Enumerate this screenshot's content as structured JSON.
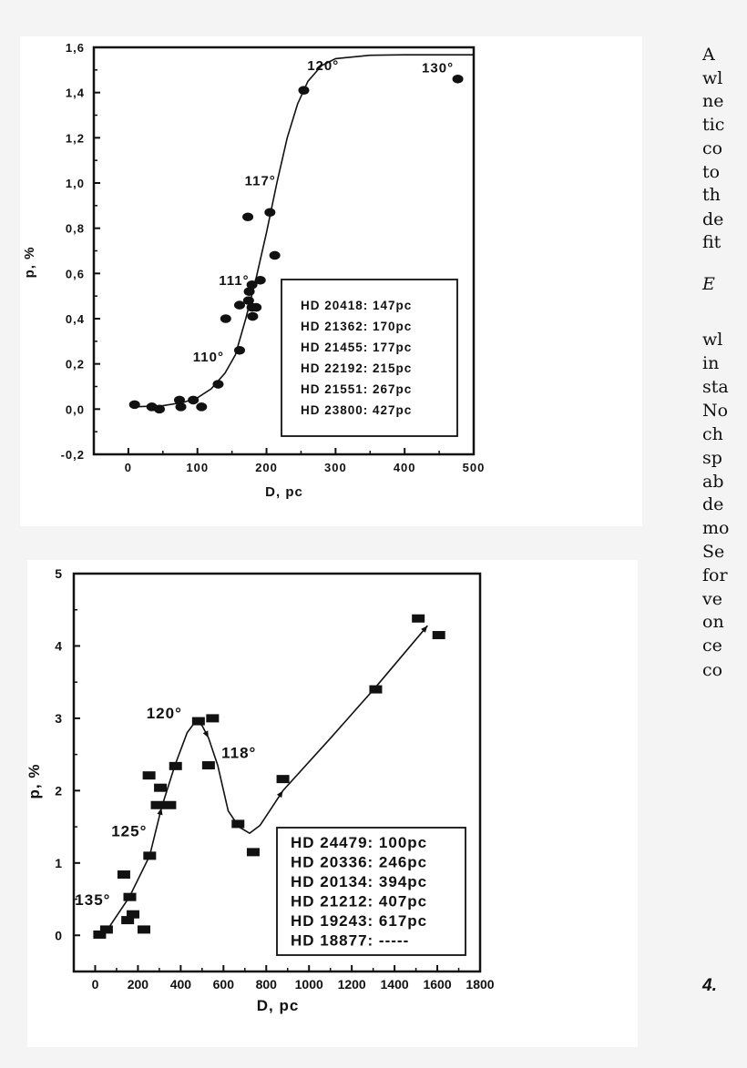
{
  "chart_data": [
    {
      "type": "scatter",
      "xlabel": "D, pc",
      "ylabel": "p, %",
      "xlim": [
        -50,
        500
      ],
      "ylim": [
        -0.2,
        1.6
      ],
      "xticks": [
        0,
        100,
        200,
        300,
        400,
        500
      ],
      "xtick_labels": [
        "0",
        "100",
        "200",
        "300",
        "400",
        "500"
      ],
      "yticks": [
        -0.2,
        0.0,
        0.2,
        0.4,
        0.6,
        0.8,
        1.0,
        1.2,
        1.4,
        1.6
      ],
      "ytick_labels": [
        "-0,2",
        "0,0",
        "0,2",
        "0,4",
        "0,6",
        "0,8",
        "1,0",
        "1,2",
        "1,4",
        "1,6"
      ],
      "marker": "circle",
      "grid": false,
      "legend_placement": "bottom-right",
      "legend": [
        "HD 20418: 147pc",
        "HD 21362: 170pc",
        "HD 21455: 177pc",
        "HD 22192: 215pc",
        "HD 21551: 267pc",
        "HD 23800: 427pc"
      ],
      "points": [
        [
          9,
          0.02
        ],
        [
          34,
          0.01
        ],
        [
          45,
          0.0
        ],
        [
          74,
          0.04
        ],
        [
          76,
          0.01
        ],
        [
          94,
          0.04
        ],
        [
          106,
          0.01
        ],
        [
          130,
          0.11
        ],
        [
          141,
          0.4
        ],
        [
          161,
          0.26
        ],
        [
          161,
          0.46
        ],
        [
          173,
          0.85
        ],
        [
          174,
          0.48
        ],
        [
          175,
          0.52
        ],
        [
          179,
          0.55
        ],
        [
          179,
          0.45
        ],
        [
          180,
          0.41
        ],
        [
          185,
          0.45
        ],
        [
          191,
          0.57
        ],
        [
          205,
          0.87
        ],
        [
          212,
          0.68
        ],
        [
          254,
          1.41
        ],
        [
          477,
          1.46
        ]
      ],
      "curve": [
        [
          5,
          0.01
        ],
        [
          50,
          0.015
        ],
        [
          80,
          0.03
        ],
        [
          100,
          0.05
        ],
        [
          120,
          0.09
        ],
        [
          140,
          0.16
        ],
        [
          155,
          0.24
        ],
        [
          170,
          0.4
        ],
        [
          185,
          0.58
        ],
        [
          200,
          0.78
        ],
        [
          215,
          1.0
        ],
        [
          230,
          1.2
        ],
        [
          245,
          1.35
        ],
        [
          260,
          1.45
        ],
        [
          280,
          1.52
        ],
        [
          300,
          1.55
        ],
        [
          350,
          1.565
        ],
        [
          400,
          1.567
        ],
        [
          500,
          1.567
        ]
      ],
      "annotations": [
        {
          "text": "120°",
          "x": 282,
          "y": 1.5
        },
        {
          "text": "130°",
          "x": 448,
          "y": 1.49
        },
        {
          "text": "117°",
          "x": 191,
          "y": 0.99
        },
        {
          "text": "111°",
          "x": 153,
          "y": 0.55
        },
        {
          "text": "110°",
          "x": 116,
          "y": 0.21
        }
      ]
    },
    {
      "type": "scatter",
      "xlabel": "D, pc",
      "ylabel": "p, %",
      "xlim": [
        -100,
        1800
      ],
      "ylim": [
        -0.5,
        5
      ],
      "xticks": [
        0,
        200,
        400,
        600,
        800,
        1000,
        1200,
        1400,
        1600,
        1800
      ],
      "xtick_labels": [
        "0",
        "200",
        "400",
        "600",
        "800",
        "1000",
        "1200",
        "1400",
        "1600",
        "1800"
      ],
      "yticks": [
        0,
        1,
        2,
        3,
        4,
        5
      ],
      "ytick_labels": [
        "0",
        "1",
        "2",
        "3",
        "4",
        "5"
      ],
      "marker": "square",
      "grid": false,
      "legend_placement": "bottom-right",
      "legend": [
        "HD 24479: 100pc",
        "HD 20336: 246pc",
        "HD 20134: 394pc",
        "HD 21212: 407pc",
        "HD 19243: 617pc",
        "HD 18877: -----"
      ],
      "points": [
        [
          21,
          0.01
        ],
        [
          53,
          0.08
        ],
        [
          134,
          0.84
        ],
        [
          162,
          0.53
        ],
        [
          152,
          0.21
        ],
        [
          177,
          0.29
        ],
        [
          228,
          0.08
        ],
        [
          255,
          1.1
        ],
        [
          252,
          2.21
        ],
        [
          305,
          2.04
        ],
        [
          290,
          1.8
        ],
        [
          349,
          1.8
        ],
        [
          376,
          2.34
        ],
        [
          483,
          2.96
        ],
        [
          549,
          3.0
        ],
        [
          530,
          2.35
        ],
        [
          668,
          1.54
        ],
        [
          739,
          1.15
        ],
        [
          878,
          2.16
        ],
        [
          1312,
          3.4
        ],
        [
          1511,
          4.38
        ],
        [
          1607,
          4.15
        ]
      ],
      "curve": [
        [
          60,
          0.09
        ],
        [
          160,
          0.53
        ],
        [
          255,
          1.1
        ],
        [
          310,
          1.76
        ],
        [
          373,
          2.35
        ],
        [
          430,
          2.8
        ],
        [
          473,
          2.97
        ],
        [
          500,
          2.9
        ],
        [
          530,
          2.73
        ],
        [
          573,
          2.35
        ],
        [
          622,
          1.72
        ],
        [
          672,
          1.5
        ],
        [
          722,
          1.41
        ],
        [
          771,
          1.52
        ],
        [
          878,
          2.0
        ],
        [
          1099,
          2.72
        ],
        [
          1312,
          3.43
        ],
        [
          1554,
          4.28
        ]
      ],
      "arrows_at": [
        3,
        8,
        14,
        17
      ],
      "annotations": [
        {
          "text": "120°",
          "x": 323,
          "y": 3.0
        },
        {
          "text": "118°",
          "x": 672,
          "y": 2.45
        },
        {
          "text": "125°",
          "x": 159,
          "y": 1.37
        },
        {
          "text": "135°",
          "x": -11,
          "y": 0.42
        }
      ]
    }
  ],
  "side_text": {
    "lines": [
      "A",
      "wl",
      "ne",
      "tic",
      "co",
      "to",
      "th",
      "de",
      "fit",
      "E",
      "wl",
      "in",
      "sta",
      "No",
      "ch",
      "sp",
      "ab",
      "de",
      "mo",
      "Se",
      "for",
      "ve",
      "on",
      "ce",
      "co",
      "4."
    ]
  },
  "colors": {
    "ink": "#111111",
    "page": "#f4f4f4",
    "panel": "#ffffff"
  }
}
